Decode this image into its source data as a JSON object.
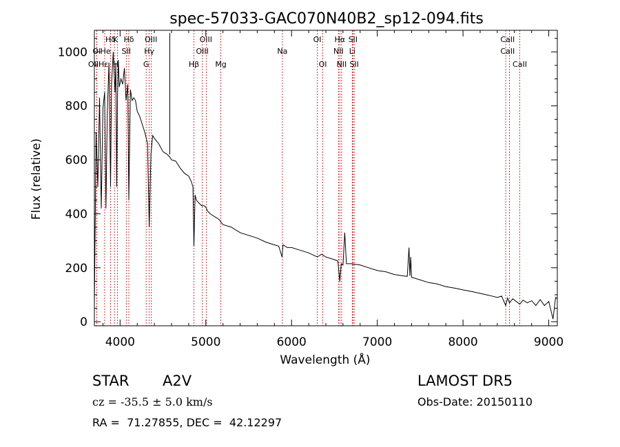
{
  "chart_data": {
    "type": "line",
    "title": "spec-57033-GAC070N40B2_sp12-094.fits",
    "xlabel": "Wavelength (Å)",
    "ylabel": "Flux (relative)",
    "xlim": [
      3700,
      9100
    ],
    "ylim": [
      -15,
      1080
    ],
    "xticks": [
      4000,
      5000,
      6000,
      7000,
      8000,
      9000
    ],
    "yticks": [
      0,
      200,
      400,
      600,
      800,
      1000
    ],
    "grid": false,
    "line_color": "#000000",
    "marker_color": "#cc0000",
    "series": [
      {
        "x": [
          3700,
          3720,
          3740,
          3760,
          3780,
          3800,
          3820,
          3835,
          3850,
          3870,
          3889,
          3900,
          3920,
          3940,
          3950,
          3960,
          3970,
          3980,
          3990,
          4010,
          4030,
          4050,
          4070,
          4090,
          4102,
          4120,
          4140,
          4160,
          4180,
          4200,
          4230,
          4260,
          4290,
          4320,
          4340,
          4360,
          4380,
          4400,
          4450,
          4500,
          4550,
          4580,
          4600,
          4650,
          4700,
          4750,
          4800,
          4830,
          4850,
          4861,
          4875,
          4890,
          4920,
          4950,
          4980,
          5000,
          5007,
          5020,
          5050,
          5100,
          5150,
          5200,
          5300,
          5400,
          5500,
          5600,
          5700,
          5800,
          5850,
          5890,
          5900,
          5950,
          6000,
          6100,
          6200,
          6300,
          6350,
          6400,
          6500,
          6540,
          6563,
          6580,
          6600,
          6620,
          6640,
          6700,
          6800,
          6900,
          7000,
          7100,
          7200,
          7300,
          7350,
          7370,
          7380,
          7390,
          7400,
          7500,
          7600,
          7700,
          7800,
          7900,
          8000,
          8100,
          8200,
          8300,
          8400,
          8450,
          8498,
          8520,
          8542,
          8580,
          8662,
          8700,
          8750,
          8800,
          8850,
          8900,
          8950,
          9000,
          9050,
          9080,
          9100
        ],
        "y": [
          60,
          700,
          500,
          830,
          420,
          790,
          850,
          420,
          770,
          960,
          500,
          880,
          1000,
          850,
          960,
          500,
          840,
          970,
          870,
          900,
          880,
          940,
          820,
          880,
          450,
          860,
          820,
          830,
          820,
          780,
          760,
          730,
          700,
          660,
          350,
          620,
          690,
          680,
          660,
          630,
          620,
          610,
          600,
          595,
          570,
          550,
          540,
          520,
          500,
          280,
          470,
          450,
          440,
          430,
          430,
          425,
          420,
          410,
          400,
          390,
          380,
          360,
          350,
          330,
          320,
          310,
          295,
          285,
          280,
          240,
          285,
          275,
          275,
          265,
          255,
          240,
          250,
          240,
          230,
          225,
          150,
          215,
          210,
          330,
          215,
          215,
          210,
          200,
          190,
          185,
          175,
          170,
          168,
          275,
          170,
          240,
          165,
          155,
          145,
          140,
          130,
          125,
          118,
          112,
          105,
          98,
          90,
          95,
          60,
          88,
          70,
          85,
          65,
          80,
          70,
          78,
          60,
          82,
          60,
          75,
          10,
          90,
          85
        ]
      }
    ],
    "line_markers": [
      {
        "label": "Hδ",
        "x": 3889
      },
      {
        "label": "K",
        "x": 3934
      },
      {
        "label": "Hδ",
        "x": 4102
      },
      {
        "label": "OIII",
        "x": 4363
      },
      {
        "label": "OIII",
        "x": 5007
      },
      {
        "label": "OI",
        "x": 6300
      },
      {
        "label": "Hα",
        "x": 6563
      },
      {
        "label": "SII",
        "x": 6716
      },
      {
        "label": "OI",
        "x": 3727
      },
      {
        "label": "He",
        "x": 3820
      },
      {
        "label": "SII",
        "x": 4072
      },
      {
        "label": "Hγ",
        "x": 4340
      },
      {
        "label": "OIII",
        "x": 4959
      },
      {
        "label": "Na",
        "x": 5893
      },
      {
        "label": "NII",
        "x": 6548
      },
      {
        "label": "Li",
        "x": 6708
      },
      {
        "label": "CaII",
        "x": 8498
      },
      {
        "label": "CaII",
        "x": 8542
      },
      {
        "label": "OII",
        "x": 3727
      },
      {
        "label": "Hε",
        "x": 3970
      },
      {
        "label": "G",
        "x": 4304
      },
      {
        "label": "Hβ",
        "x": 4861
      },
      {
        "label": "Mg",
        "x": 5175
      },
      {
        "label": "OI",
        "x": 6364
      },
      {
        "label": "NII",
        "x": 6584
      },
      {
        "label": "SII",
        "x": 6731
      },
      {
        "label": "CaII",
        "x": 8662
      }
    ],
    "annotation_rows": [
      [
        "Hδ",
        "K",
        "Hδ",
        "OIII",
        "OIII",
        "OI",
        "Hα",
        "SII",
        "CaII"
      ],
      [
        "OI",
        "He",
        "SII",
        "Hγ",
        "OIII",
        "Na",
        "NII",
        "Li",
        "CaII"
      ],
      [
        "OIIHε",
        "H",
        "G",
        "Hβ",
        "Mg",
        "OI",
        "NII",
        "SII",
        "CaII"
      ]
    ]
  },
  "info": {
    "object_class": "STAR",
    "subclass": "A2V",
    "survey": "LAMOST DR5",
    "redshift": "cz = -35.5 ± 5.0 km/s",
    "obs_date": "Obs-Date: 20150110",
    "coords": "RA =  71.27855, DEC =  42.12297"
  }
}
